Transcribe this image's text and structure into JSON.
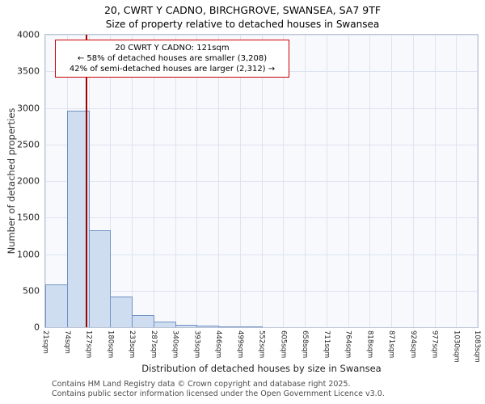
{
  "title": {
    "line1": "20, CWRT Y CADNO, BIRCHGROVE, SWANSEA, SA7 9TF",
    "line2": "Size of property relative to detached houses in Swansea"
  },
  "chart_data": {
    "type": "bar",
    "title": "20, CWRT Y CADNO, BIRCHGROVE, SWANSEA, SA7 9TF — Size of property relative to detached houses in Swansea",
    "xlabel": "Distribution of detached houses by size in Swansea",
    "ylabel": "Number of detached properties",
    "ylim": [
      0,
      4000
    ],
    "yticks": [
      0,
      500,
      1000,
      1500,
      2000,
      2500,
      3000,
      3500,
      4000
    ],
    "x_tick_labels": [
      "21sqm",
      "74sqm",
      "127sqm",
      "180sqm",
      "233sqm",
      "287sqm",
      "340sqm",
      "393sqm",
      "446sqm",
      "499sqm",
      "552sqm",
      "605sqm",
      "658sqm",
      "711sqm",
      "764sqm",
      "818sqm",
      "871sqm",
      "924sqm",
      "977sqm",
      "1030sqm",
      "1083sqm"
    ],
    "bin_edges_sqm": [
      21,
      74,
      127,
      180,
      233,
      287,
      340,
      393,
      446,
      499,
      552,
      605,
      658,
      711,
      764,
      818,
      871,
      924,
      977,
      1030,
      1083
    ],
    "values": [
      590,
      2960,
      1330,
      420,
      170,
      80,
      30,
      18,
      10,
      6,
      0,
      0,
      0,
      0,
      0,
      0,
      0,
      0,
      0,
      0
    ],
    "grid": true,
    "legend_position": "none",
    "marker": {
      "label": "20 CWRT Y CADNO",
      "value_sqm": 121,
      "color": "#a00000"
    },
    "colors": {
      "bar_fill": "#cfddf1",
      "bar_border": "#7191c4",
      "grid": "#dde3f0",
      "plot_bg": "#f8f9fd",
      "annotation_border": "#cc0000"
    }
  },
  "annotation": {
    "line1": "20 CWRT Y CADNO: 121sqm",
    "line2": "← 58% of detached houses are smaller (3,208)",
    "line3": "42% of semi-detached houses are larger (2,312) →"
  },
  "footer": {
    "line1": "Contains HM Land Registry data © Crown copyright and database right 2025.",
    "line2": "Contains public sector information licensed under the Open Government Licence v3.0."
  }
}
